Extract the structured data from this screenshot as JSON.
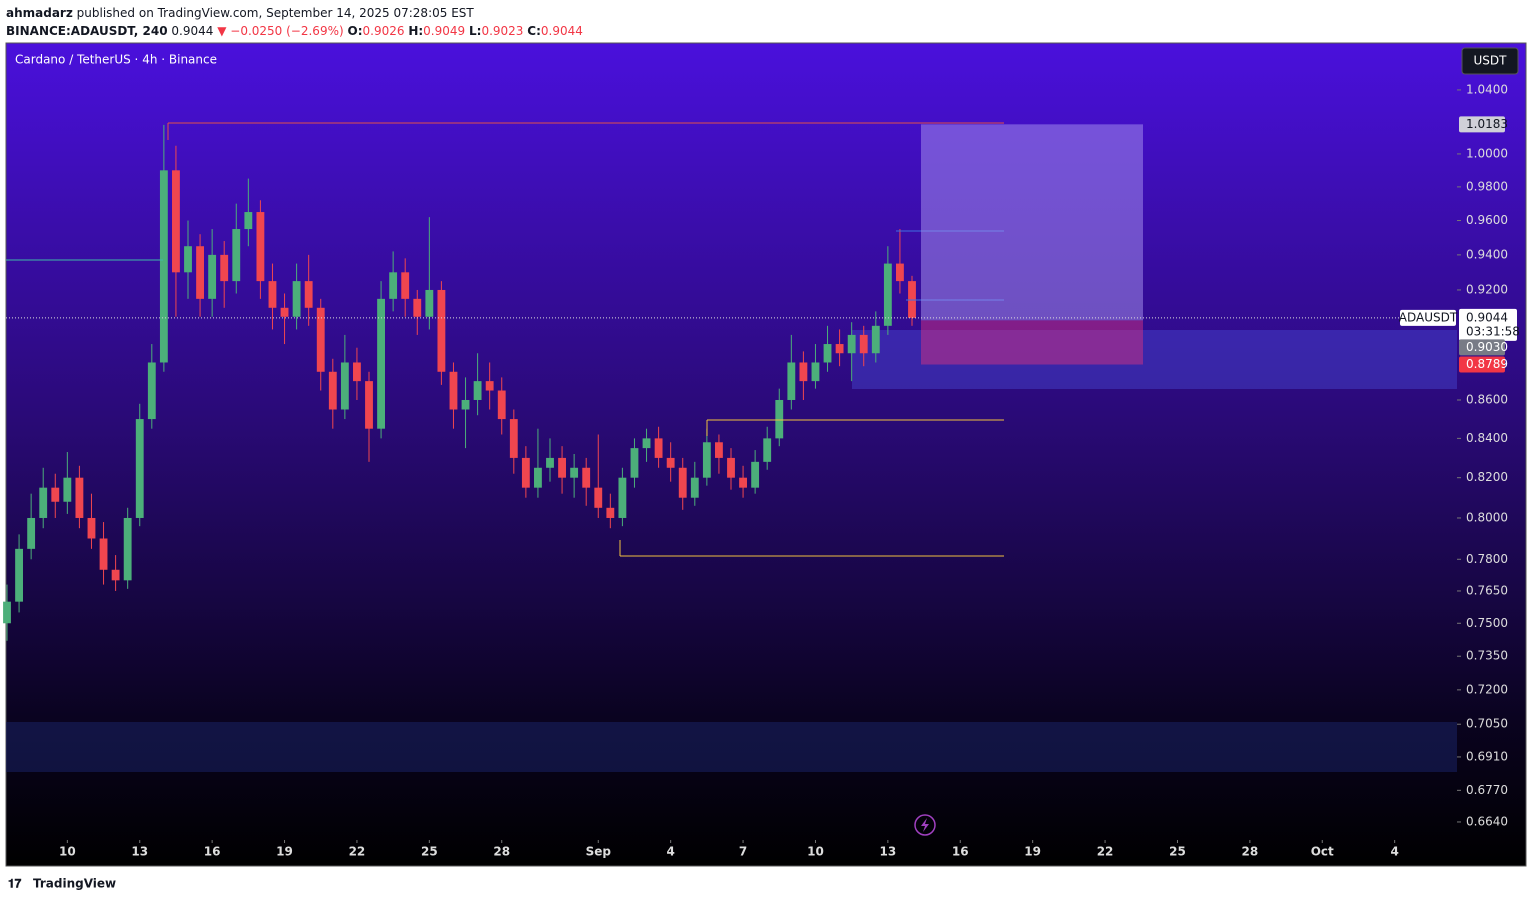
{
  "header": {
    "author": "ahmadarz",
    "published": "published on TradingView.com, September 14, 2025 07:28:05 EST",
    "symbol": "BINANCE:ADAUSDT, 240",
    "last": "0.9044",
    "change": "▼ −0.0250 (−2.69%)",
    "ohlc": [
      {
        "label": "O:",
        "value": "0.9026"
      },
      {
        "label": "H:",
        "value": "0.9049"
      },
      {
        "label": "L:",
        "value": "0.9023"
      },
      {
        "label": "C:",
        "value": "0.9044"
      }
    ]
  },
  "footer": {
    "brand": "TradingView"
  },
  "chart_data": {
    "type": "candlestick",
    "title": "Cardano / TetherUS · 4h · Binance",
    "log_scale": true,
    "grid": false,
    "up_color": "#4caf7a",
    "down_color": "#f0464f",
    "ylim": [
      0.6567,
      1.0697
    ],
    "yticks": [
      {
        "value": 1.04,
        "label": "1.0400"
      },
      {
        "value": 1.0,
        "label": "1.0000"
      },
      {
        "value": 0.98,
        "label": "0.9800"
      },
      {
        "value": 0.96,
        "label": "0.9600"
      },
      {
        "value": 0.94,
        "label": "0.9400"
      },
      {
        "value": 0.92,
        "label": "0.9200"
      },
      {
        "value": 0.86,
        "label": "0.8600"
      },
      {
        "value": 0.84,
        "label": "0.8400"
      },
      {
        "value": 0.82,
        "label": "0.8200"
      },
      {
        "value": 0.8,
        "label": "0.8000"
      },
      {
        "value": 0.78,
        "label": "0.7800"
      },
      {
        "value": 0.765,
        "label": "0.7650"
      },
      {
        "value": 0.75,
        "label": "0.7500"
      },
      {
        "value": 0.735,
        "label": "0.7350"
      },
      {
        "value": 0.72,
        "label": "0.7200"
      },
      {
        "value": 0.705,
        "label": "0.7050"
      },
      {
        "value": 0.691,
        "label": "0.6910"
      },
      {
        "value": 0.677,
        "label": "0.6770"
      },
      {
        "value": 0.664,
        "label": "0.6640"
      }
    ],
    "xlim": [
      "2025-08-07T11:00",
      "2025-10-06T14:00"
    ],
    "xticks": [
      {
        "value": "2025-08-10T00:00",
        "label": "10"
      },
      {
        "value": "2025-08-13T00:00",
        "label": "13"
      },
      {
        "value": "2025-08-16T00:00",
        "label": "16"
      },
      {
        "value": "2025-08-19T00:00",
        "label": "19"
      },
      {
        "value": "2025-08-22T00:00",
        "label": "22"
      },
      {
        "value": "2025-08-25T00:00",
        "label": "25"
      },
      {
        "value": "2025-08-28T00:00",
        "label": "28"
      },
      {
        "value": "2025-09-01T00:00",
        "label": "Sep"
      },
      {
        "value": "2025-09-04T00:00",
        "label": "4"
      },
      {
        "value": "2025-09-07T00:00",
        "label": "7"
      },
      {
        "value": "2025-09-10T00:00",
        "label": "10"
      },
      {
        "value": "2025-09-13T00:00",
        "label": "13"
      },
      {
        "value": "2025-09-16T00:00",
        "label": "16"
      },
      {
        "value": "2025-09-19T00:00",
        "label": "19"
      },
      {
        "value": "2025-09-22T00:00",
        "label": "22"
      },
      {
        "value": "2025-09-25T00:00",
        "label": "25"
      },
      {
        "value": "2025-09-28T00:00",
        "label": "28"
      },
      {
        "value": "2025-10-01T00:00",
        "label": "Oct"
      },
      {
        "value": "2025-10-04T00:00",
        "label": "4"
      }
    ],
    "x": [
      "2025-08-07T12:00",
      "2025-08-08T00:00",
      "2025-08-08T12:00",
      "2025-08-09T00:00",
      "2025-08-09T12:00",
      "2025-08-10T00:00",
      "2025-08-10T12:00",
      "2025-08-11T00:00",
      "2025-08-11T12:00",
      "2025-08-12T00:00",
      "2025-08-12T12:00",
      "2025-08-13T00:00",
      "2025-08-13T12:00",
      "2025-08-14T00:00",
      "2025-08-14T12:00",
      "2025-08-15T00:00",
      "2025-08-15T12:00",
      "2025-08-16T00:00",
      "2025-08-16T12:00",
      "2025-08-17T00:00",
      "2025-08-17T12:00",
      "2025-08-18T00:00",
      "2025-08-18T12:00",
      "2025-08-19T00:00",
      "2025-08-19T12:00",
      "2025-08-20T00:00",
      "2025-08-20T12:00",
      "2025-08-21T00:00",
      "2025-08-21T12:00",
      "2025-08-22T00:00",
      "2025-08-22T12:00",
      "2025-08-23T00:00",
      "2025-08-23T12:00",
      "2025-08-24T00:00",
      "2025-08-24T12:00",
      "2025-08-25T00:00",
      "2025-08-25T12:00",
      "2025-08-26T00:00",
      "2025-08-26T12:00",
      "2025-08-27T00:00",
      "2025-08-27T12:00",
      "2025-08-28T00:00",
      "2025-08-28T12:00",
      "2025-08-29T00:00",
      "2025-08-29T12:00",
      "2025-08-30T00:00",
      "2025-08-30T12:00",
      "2025-08-31T00:00",
      "2025-08-31T12:00",
      "2025-09-01T00:00",
      "2025-09-01T12:00",
      "2025-09-02T00:00",
      "2025-09-02T12:00",
      "2025-09-03T00:00",
      "2025-09-03T12:00",
      "2025-09-04T00:00",
      "2025-09-04T12:00",
      "2025-09-05T00:00",
      "2025-09-05T12:00",
      "2025-09-06T00:00",
      "2025-09-06T12:00",
      "2025-09-07T00:00",
      "2025-09-07T12:00",
      "2025-09-08T00:00",
      "2025-09-08T12:00",
      "2025-09-09T00:00",
      "2025-09-09T12:00",
      "2025-09-10T00:00",
      "2025-09-10T12:00",
      "2025-09-11T00:00",
      "2025-09-11T12:00",
      "2025-09-12T00:00",
      "2025-09-12T12:00",
      "2025-09-13T00:00",
      "2025-09-13T12:00",
      "2025-09-14T00:00"
    ],
    "open": [
      0.75,
      0.76,
      0.785,
      0.8,
      0.815,
      0.808,
      0.82,
      0.8,
      0.79,
      0.775,
      0.77,
      0.8,
      0.85,
      0.88,
      0.99,
      0.93,
      0.945,
      0.915,
      0.94,
      0.925,
      0.955,
      0.965,
      0.925,
      0.91,
      0.905,
      0.925,
      0.91,
      0.875,
      0.855,
      0.88,
      0.87,
      0.845,
      0.915,
      0.93,
      0.915,
      0.905,
      0.92,
      0.875,
      0.855,
      0.86,
      0.87,
      0.865,
      0.85,
      0.83,
      0.815,
      0.825,
      0.83,
      0.82,
      0.825,
      0.815,
      0.805,
      0.8,
      0.82,
      0.835,
      0.84,
      0.83,
      0.825,
      0.81,
      0.82,
      0.838,
      0.83,
      0.82,
      0.815,
      0.828,
      0.84,
      0.86,
      0.88,
      0.87,
      0.88,
      0.89,
      0.885,
      0.895,
      0.885,
      0.9,
      0.935,
      0.925
    ],
    "high": [
      0.768,
      0.792,
      0.812,
      0.825,
      0.822,
      0.833,
      0.826,
      0.812,
      0.798,
      0.782,
      0.805,
      0.858,
      0.89,
      1.018,
      1.005,
      0.96,
      0.952,
      0.955,
      0.948,
      0.97,
      0.985,
      0.972,
      0.935,
      0.918,
      0.935,
      0.94,
      0.915,
      0.882,
      0.895,
      0.888,
      0.875,
      0.925,
      0.942,
      0.938,
      0.92,
      0.962,
      0.925,
      0.88,
      0.872,
      0.885,
      0.88,
      0.872,
      0.855,
      0.836,
      0.845,
      0.84,
      0.836,
      0.832,
      0.83,
      0.842,
      0.812,
      0.825,
      0.84,
      0.845,
      0.846,
      0.838,
      0.83,
      0.828,
      0.845,
      0.842,
      0.835,
      0.826,
      0.834,
      0.846,
      0.866,
      0.895,
      0.886,
      0.89,
      0.9,
      0.898,
      0.902,
      0.9,
      0.908,
      0.945,
      0.955,
      0.928
    ],
    "low": [
      0.742,
      0.755,
      0.78,
      0.795,
      0.8,
      0.802,
      0.795,
      0.785,
      0.768,
      0.765,
      0.766,
      0.796,
      0.845,
      0.875,
      0.905,
      0.915,
      0.905,
      0.905,
      0.91,
      0.918,
      0.945,
      0.915,
      0.898,
      0.89,
      0.898,
      0.9,
      0.865,
      0.845,
      0.85,
      0.86,
      0.828,
      0.84,
      0.908,
      0.905,
      0.895,
      0.898,
      0.868,
      0.845,
      0.835,
      0.852,
      0.855,
      0.842,
      0.822,
      0.81,
      0.81,
      0.818,
      0.812,
      0.81,
      0.806,
      0.8,
      0.795,
      0.796,
      0.815,
      0.828,
      0.825,
      0.818,
      0.804,
      0.806,
      0.816,
      0.822,
      0.814,
      0.81,
      0.812,
      0.824,
      0.836,
      0.855,
      0.86,
      0.866,
      0.875,
      0.878,
      0.87,
      0.878,
      0.88,
      0.895,
      0.918,
      0.9
    ],
    "close": [
      0.76,
      0.785,
      0.8,
      0.815,
      0.808,
      0.82,
      0.8,
      0.79,
      0.775,
      0.77,
      0.8,
      0.85,
      0.88,
      0.99,
      0.93,
      0.945,
      0.915,
      0.94,
      0.925,
      0.955,
      0.965,
      0.925,
      0.91,
      0.905,
      0.925,
      0.91,
      0.875,
      0.855,
      0.88,
      0.87,
      0.845,
      0.915,
      0.93,
      0.915,
      0.905,
      0.92,
      0.875,
      0.855,
      0.86,
      0.87,
      0.865,
      0.85,
      0.83,
      0.815,
      0.825,
      0.83,
      0.82,
      0.825,
      0.815,
      0.805,
      0.8,
      0.82,
      0.835,
      0.84,
      0.83,
      0.825,
      0.81,
      0.82,
      0.838,
      0.83,
      0.82,
      0.815,
      0.828,
      0.84,
      0.86,
      0.88,
      0.87,
      0.88,
      0.89,
      0.885,
      0.895,
      0.885,
      0.9,
      0.935,
      0.925,
      0.9044
    ],
    "price_labels": [
      {
        "value": 1.0183,
        "label": "1.0183"
      },
      {
        "value": 0.9044,
        "label": "0.9044"
      },
      {
        "value": 0.903,
        "label": "0.9030"
      },
      {
        "value": 0.8789,
        "label": "0.8789"
      }
    ],
    "symbol_tag": "ADAUSDT",
    "countdown": "03:31:58",
    "currency": "USDT"
  }
}
